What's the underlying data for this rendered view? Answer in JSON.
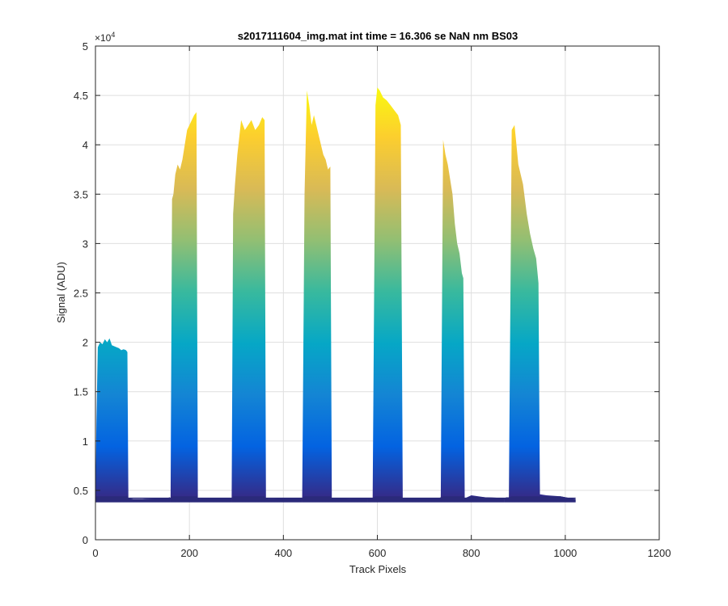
{
  "chart_data": {
    "type": "area",
    "title": "s2017111604_img.mat int time = 16.306 se  NaN nm BS03",
    "xlabel": "Track Pixels",
    "ylabel": "Signal (ADU)",
    "xlim": [
      0,
      1200
    ],
    "ylim": [
      0,
      50000
    ],
    "x_ticks": [
      0,
      200,
      400,
      600,
      800,
      1000,
      1200
    ],
    "y_ticks": [
      0,
      5000,
      10000,
      15000,
      20000,
      25000,
      30000,
      35000,
      40000,
      45000,
      50000
    ],
    "x_tick_labels": [
      "0",
      "200",
      "400",
      "600",
      "800",
      "1000",
      "1200"
    ],
    "y_tick_labels": [
      "0",
      "0.5",
      "1",
      "1.5",
      "2",
      "2.5",
      "3",
      "3.5",
      "4",
      "4.5",
      "5"
    ],
    "y_exponent_base": "×10",
    "y_exponent_power": "4",
    "grid": true,
    "colormap": [
      "#352a87",
      "#0363e1",
      "#1485d4",
      "#06a7c6",
      "#38b99e",
      "#92bf73",
      "#d9ba56",
      "#fcce2e",
      "#f9fb0e"
    ],
    "baseline": 4200,
    "x_end": 1022,
    "series": [
      {
        "x": [
          0,
          2,
          5,
          10,
          15,
          20,
          25,
          30,
          35,
          40,
          45,
          50,
          55,
          60,
          65,
          68,
          70,
          75,
          80,
          90,
          100,
          120,
          140,
          155,
          158,
          160
        ],
        "y": [
          4200,
          12000,
          19500,
          20000,
          19800,
          20300,
          20000,
          20400,
          19700,
          19600,
          19500,
          19400,
          19200,
          19300,
          19200,
          19000,
          4200,
          4150,
          4100,
          4100,
          4100,
          4150,
          4200,
          4250,
          4300,
          4200
        ]
      },
      {
        "x": [
          160,
          163,
          166,
          170,
          175,
          180,
          185,
          190,
          195,
          200,
          205,
          210,
          215,
          218,
          222,
          230,
          250,
          270,
          290
        ],
        "y": [
          4200,
          34500,
          35000,
          37000,
          38000,
          37500,
          38500,
          40000,
          41500,
          42000,
          42500,
          43000,
          43300,
          4200,
          4150,
          4200,
          4200,
          4200,
          4200
        ]
      },
      {
        "x": [
          290,
          293,
          297,
          302,
          310,
          318,
          325,
          332,
          340,
          348,
          355,
          360,
          363,
          368,
          380,
          400,
          420,
          440
        ],
        "y": [
          4200,
          33000,
          36000,
          39000,
          42500,
          41500,
          42000,
          42500,
          41500,
          42000,
          42800,
          42500,
          4200,
          4150,
          4150,
          4200,
          4200,
          4200
        ]
      },
      {
        "x": [
          440,
          445,
          450,
          455,
          460,
          465,
          470,
          475,
          480,
          485,
          490,
          495,
          500,
          503,
          507,
          520,
          540,
          560,
          580
        ],
        "y": [
          4200,
          35000,
          45500,
          44000,
          42000,
          43000,
          42000,
          41000,
          40000,
          39000,
          38500,
          37500,
          37800,
          4200,
          4200,
          4200,
          4150,
          4200,
          4200
        ]
      },
      {
        "x": [
          580,
          590,
          596,
          600,
          605,
          612,
          620,
          628,
          636,
          644,
          650,
          654,
          658,
          670,
          690,
          710,
          730
        ],
        "y": [
          4200,
          4250,
          44000,
          45800,
          45500,
          44800,
          44500,
          44000,
          43500,
          43000,
          42000,
          4200,
          4200,
          4200,
          4200,
          4200,
          4200
        ]
      },
      {
        "x": [
          730,
          735,
          740,
          745,
          750,
          755,
          760,
          765,
          770,
          775,
          780,
          783,
          786,
          800,
          830,
          860,
          870
        ],
        "y": [
          4200,
          4300,
          40500,
          39000,
          38000,
          36500,
          35000,
          32000,
          30000,
          29000,
          27000,
          26500,
          4200,
          4500,
          4300,
          4250,
          4200
        ]
      },
      {
        "x": [
          870,
          875,
          880,
          886,
          892,
          900,
          910,
          918,
          925,
          932,
          938,
          943,
          946,
          960,
          990,
          1022
        ],
        "y": [
          4200,
          4300,
          4300,
          41500,
          42000,
          38000,
          36000,
          33000,
          31000,
          29500,
          28500,
          26000,
          4600,
          4500,
          4400,
          4100
        ]
      }
    ]
  }
}
